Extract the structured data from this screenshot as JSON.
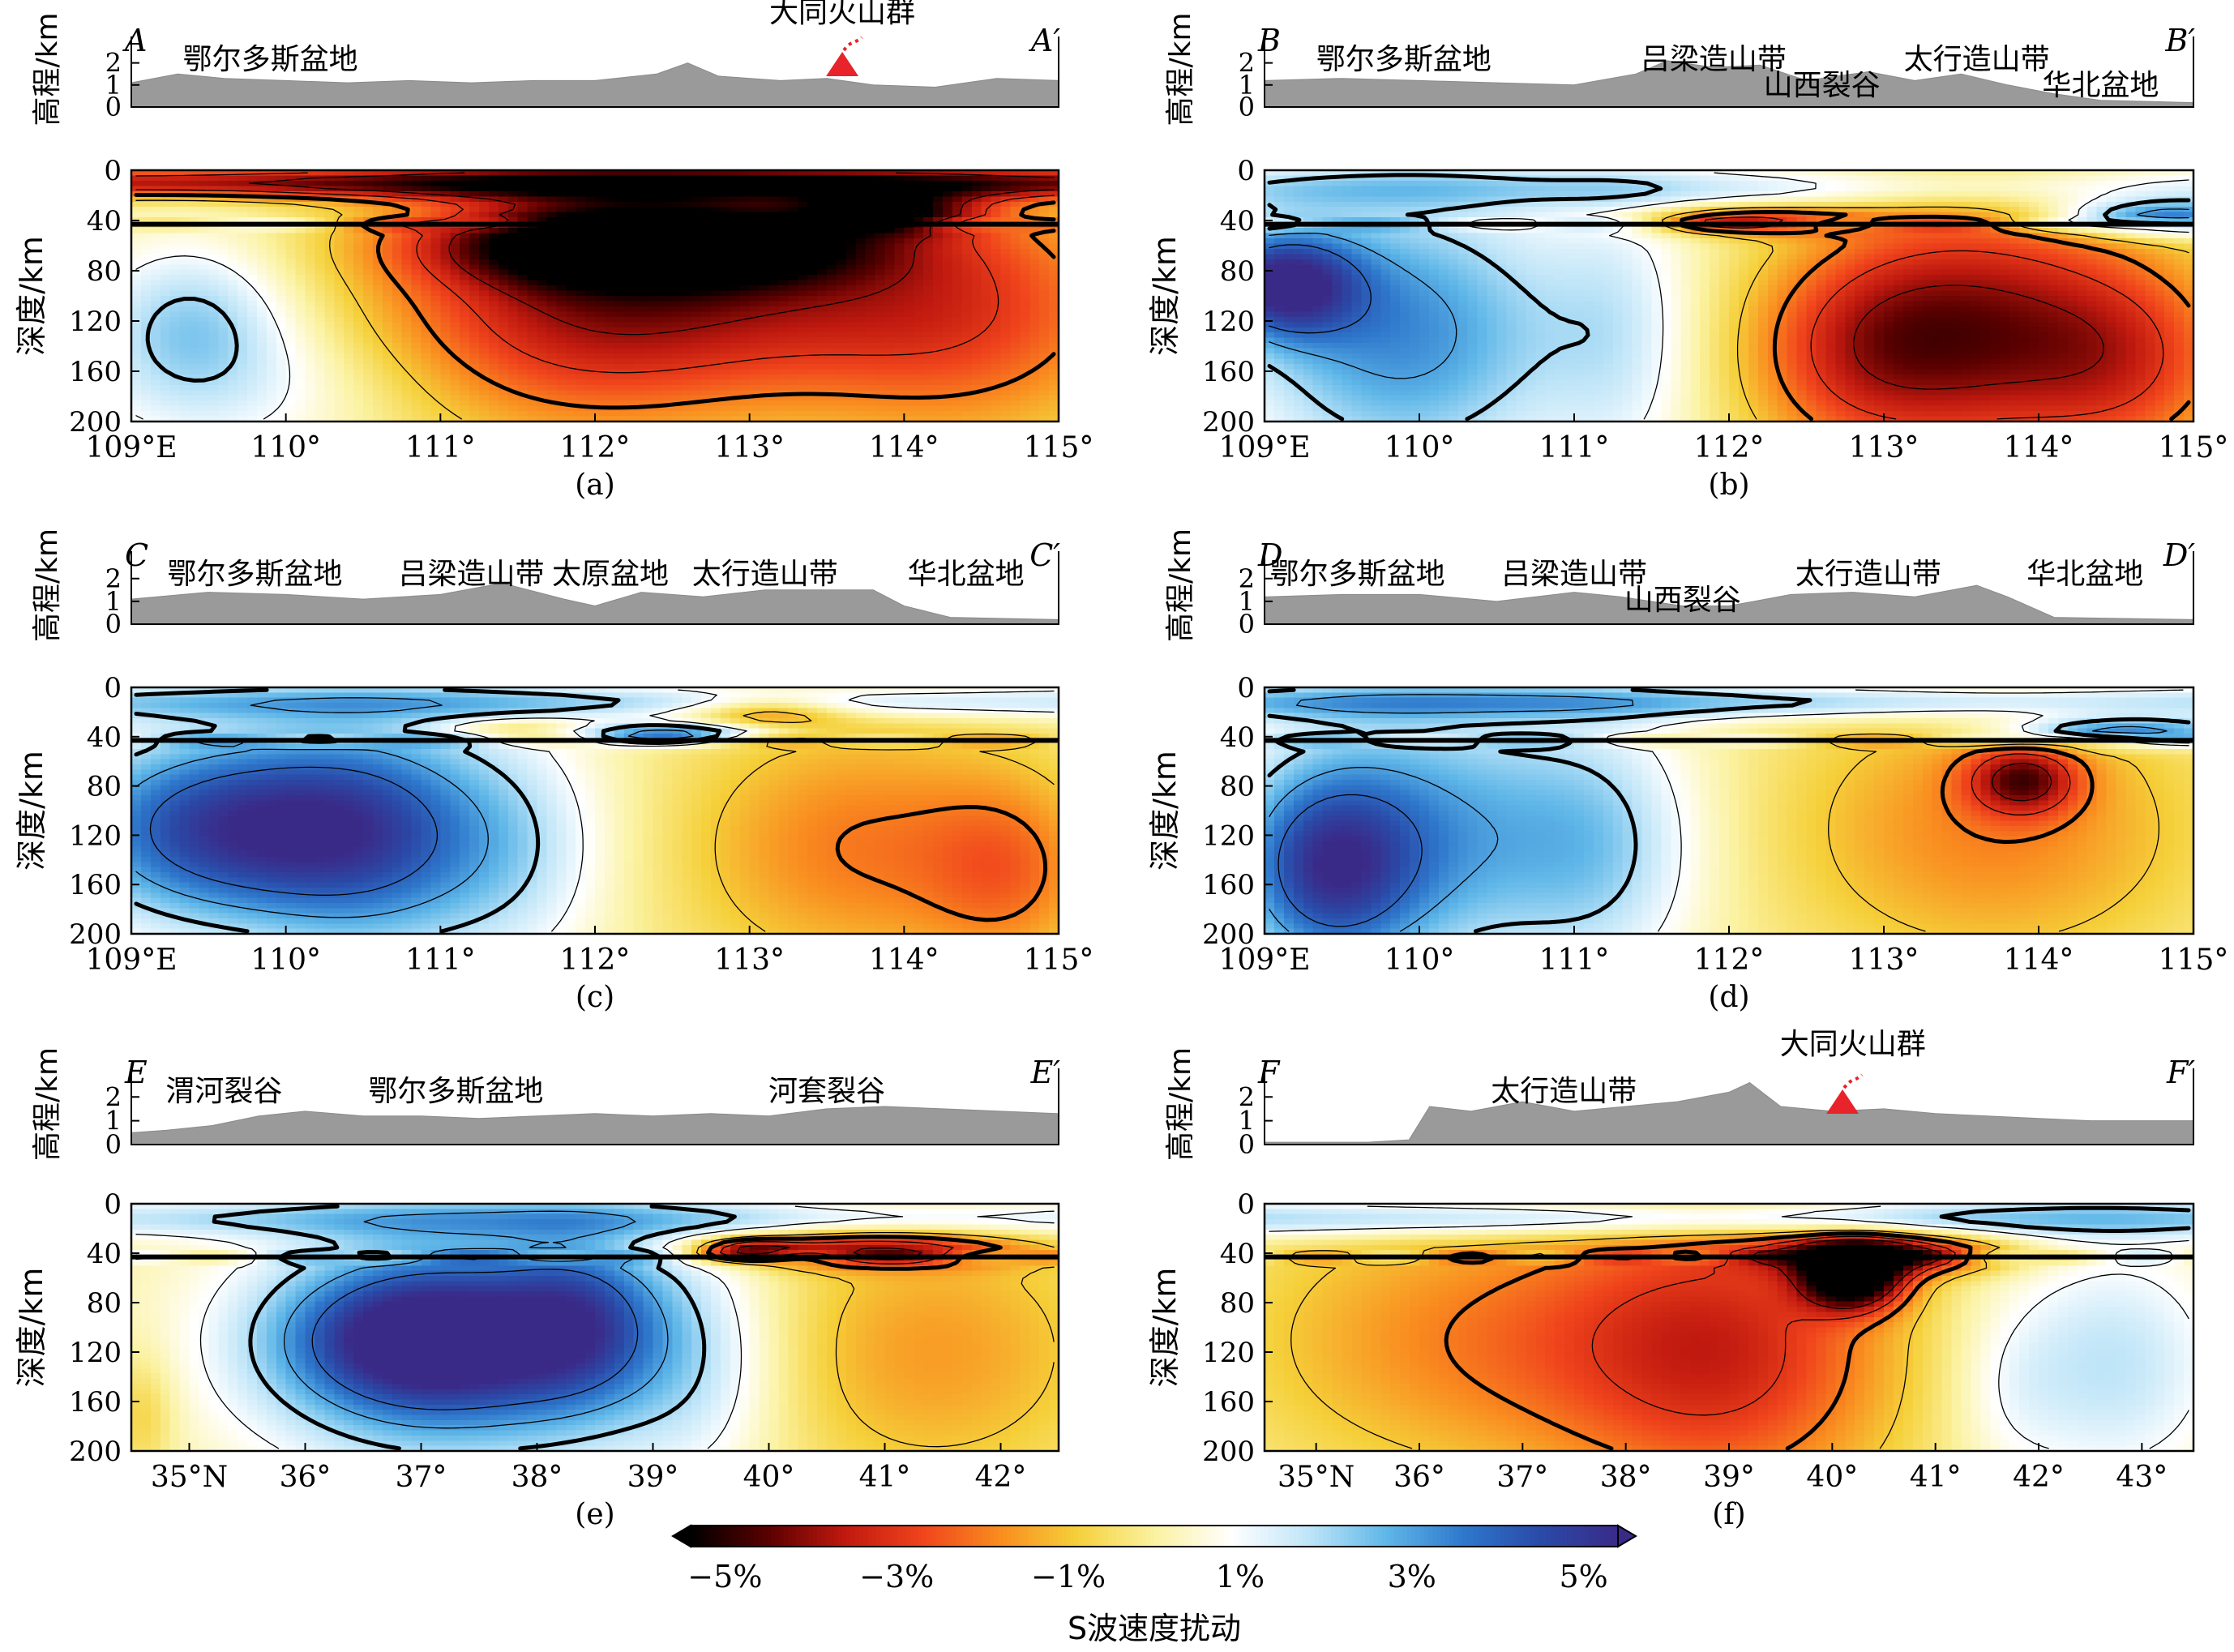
{
  "colorbar": {
    "label": "S波速度扰动",
    "ticks": [
      "−5%",
      "−3%",
      "−1%",
      "1%",
      "3%",
      "5%"
    ],
    "tick_values": [
      -5,
      -3,
      -1,
      1,
      3,
      5
    ],
    "range": [
      -5.4,
      5.4
    ],
    "colors": [
      "#000000",
      "#5a0000",
      "#c0190f",
      "#f0441c",
      "#f98c1f",
      "#f5d03a",
      "#fbf2a0",
      "#ffffff",
      "#bfe5f8",
      "#5fb7e8",
      "#2e78cc",
      "#2a4aa8",
      "#3a2a88"
    ]
  },
  "chart_data": [
    {
      "id": "a",
      "type": "heatmap",
      "caption": "(a)",
      "start_label": "A",
      "end_label": "A′",
      "elev_ylabel": "高程/km",
      "depth_ylabel": "深度/km",
      "elev_ylim": [
        0,
        3.2
      ],
      "elev_ticks": [
        0,
        1,
        2
      ],
      "elev_tick_labels": [
        "0",
        "1",
        "2"
      ],
      "depth_ylim": [
        0,
        200
      ],
      "depth_ticks": [
        0,
        40,
        80,
        120,
        160,
        200
      ],
      "depth_tick_labels": [
        "0",
        "40",
        "80",
        "120",
        "160",
        "200"
      ],
      "xlim": [
        109,
        115
      ],
      "x_ticks": [
        109,
        110,
        111,
        112,
        113,
        114,
        115
      ],
      "x_tick_labels": [
        "109°E",
        "110°",
        "111°",
        "112°",
        "113°",
        "114°",
        "115°"
      ],
      "features": [
        {
          "label": "鄂尔多斯盆地",
          "x": 109.9
        },
        {
          "label": "大同火山群",
          "x": 113.6
        }
      ],
      "volcano_x": 113.6,
      "elevation": {
        "x": [
          109,
          109.3,
          109.6,
          110,
          110.4,
          110.8,
          111.2,
          111.6,
          112,
          112.4,
          112.6,
          112.8,
          113.2,
          113.5,
          113.8,
          114.2,
          114.6,
          115
        ],
        "y": [
          1.1,
          1.5,
          1.3,
          1.2,
          1.1,
          1.2,
          1.1,
          1.2,
          1.2,
          1.5,
          2.0,
          1.4,
          1.2,
          1.3,
          1.0,
          0.9,
          1.3,
          1.2
        ]
      },
      "anomalies": [
        {
          "x": 112.4,
          "z": 58,
          "rx": 0.9,
          "rz": 22,
          "v": -5.5
        },
        {
          "x": 111.9,
          "z": 105,
          "rx": 1.0,
          "rz": 75,
          "v": -3.2
        },
        {
          "x": 113.5,
          "z": 90,
          "rx": 1.3,
          "rz": 60,
          "v": -2.2
        },
        {
          "x": 114.4,
          "z": 135,
          "rx": 0.8,
          "rz": 70,
          "v": -1.6
        },
        {
          "x": 113.9,
          "z": 32,
          "rx": 0.4,
          "rz": 12,
          "v": -3.6
        },
        {
          "x": 109.4,
          "z": 118,
          "rx": 0.45,
          "rz": 45,
          "v": 2.0
        },
        {
          "x": 109.7,
          "z": 175,
          "rx": 0.8,
          "rz": 45,
          "v": 1.1
        },
        {
          "x": 112,
          "z": 10,
          "rx": 6.0,
          "rz": 9,
          "v": -4.2
        }
      ]
    },
    {
      "id": "b",
      "type": "heatmap",
      "caption": "(b)",
      "start_label": "B",
      "end_label": "B′",
      "elev_ylabel": "高程/km",
      "depth_ylabel": "深度/km",
      "elev_ylim": [
        0,
        3.2
      ],
      "elev_ticks": [
        0,
        1,
        2
      ],
      "elev_tick_labels": [
        "0",
        "1",
        "2"
      ],
      "depth_ylim": [
        0,
        200
      ],
      "depth_ticks": [
        0,
        40,
        80,
        120,
        160,
        200
      ],
      "depth_tick_labels": [
        "0",
        "40",
        "80",
        "120",
        "160",
        "200"
      ],
      "xlim": [
        109,
        115
      ],
      "x_ticks": [
        109,
        110,
        111,
        112,
        113,
        114,
        115
      ],
      "x_tick_labels": [
        "109°E",
        "110°",
        "111°",
        "112°",
        "113°",
        "114°",
        "115°"
      ],
      "features": [
        {
          "label": "鄂尔多斯盆地",
          "x": 109.9
        },
        {
          "label": "吕梁造山带",
          "x": 111.9
        },
        {
          "label": "山西裂谷",
          "x": 112.6
        },
        {
          "label": "太行造山带",
          "x": 113.6
        },
        {
          "label": "华北盆地",
          "x": 114.4
        }
      ],
      "volcano_x": null,
      "elevation": {
        "x": [
          109,
          109.5,
          110,
          110.5,
          111,
          111.4,
          111.6,
          111.9,
          112.2,
          112.5,
          112.9,
          113.2,
          113.5,
          113.8,
          114.1,
          114.4,
          115
        ],
        "y": [
          1.2,
          1.3,
          1.2,
          1.1,
          1.0,
          1.5,
          2.1,
          1.8,
          1.9,
          1.2,
          1.6,
          1.2,
          1.5,
          1.0,
          0.6,
          0.3,
          0.2
        ]
      },
      "anomalies": [
        {
          "x": 109.9,
          "z": 130,
          "rx": 0.75,
          "rz": 80,
          "v": 3.3
        },
        {
          "x": 109.1,
          "z": 90,
          "rx": 0.35,
          "rz": 30,
          "v": 4.5
        },
        {
          "x": 111.3,
          "z": 130,
          "rx": 0.35,
          "rz": 80,
          "v": 1.3
        },
        {
          "x": 113.6,
          "z": 125,
          "rx": 0.7,
          "rz": 75,
          "v": -3.5
        },
        {
          "x": 112.8,
          "z": 145,
          "rx": 0.55,
          "rz": 60,
          "v": -2.2
        },
        {
          "x": 114.6,
          "z": 150,
          "rx": 0.55,
          "rz": 60,
          "v": -2.4
        },
        {
          "x": 112.1,
          "z": 40,
          "rx": 0.5,
          "rz": 8,
          "v": -3.0
        },
        {
          "x": 114.8,
          "z": 38,
          "rx": 0.5,
          "rz": 10,
          "v": 4.0
        },
        {
          "x": 112,
          "z": 14,
          "rx": 6.0,
          "rz": 12,
          "v": 1.6
        }
      ]
    },
    {
      "id": "c",
      "type": "heatmap",
      "caption": "(c)",
      "start_label": "C",
      "end_label": "C′",
      "elev_ylabel": "高程/km",
      "depth_ylabel": "深度/km",
      "elev_ylim": [
        0,
        3.2
      ],
      "elev_ticks": [
        0,
        1,
        2
      ],
      "elev_tick_labels": [
        "0",
        "1",
        "2"
      ],
      "depth_ylim": [
        0,
        200
      ],
      "depth_ticks": [
        0,
        40,
        80,
        120,
        160,
        200
      ],
      "depth_tick_labels": [
        "0",
        "40",
        "80",
        "120",
        "160",
        "200"
      ],
      "xlim": [
        109,
        115
      ],
      "x_ticks": [
        109,
        110,
        111,
        112,
        113,
        114,
        115
      ],
      "x_tick_labels": [
        "109°E",
        "110°",
        "111°",
        "112°",
        "113°",
        "114°",
        "115°"
      ],
      "features": [
        {
          "label": "鄂尔多斯盆地",
          "x": 109.8
        },
        {
          "label": "吕梁造山带",
          "x": 111.2
        },
        {
          "label": "太原盆地",
          "x": 112.1
        },
        {
          "label": "太行造山带",
          "x": 113.1
        },
        {
          "label": "华北盆地",
          "x": 114.4
        }
      ],
      "volcano_x": null,
      "elevation": {
        "x": [
          109,
          109.5,
          110,
          110.5,
          111,
          111.4,
          111.8,
          112,
          112.3,
          112.7,
          113.1,
          113.5,
          113.8,
          114,
          114.3,
          115
        ],
        "y": [
          1.1,
          1.4,
          1.3,
          1.1,
          1.3,
          1.8,
          1.1,
          0.8,
          1.4,
          1.2,
          1.5,
          1.5,
          1.5,
          0.8,
          0.3,
          0.2
        ]
      },
      "anomalies": [
        {
          "x": 109.6,
          "z": 115,
          "rx": 0.75,
          "rz": 55,
          "v": 4.8
        },
        {
          "x": 110.6,
          "z": 120,
          "rx": 0.55,
          "rz": 70,
          "v": 3.0
        },
        {
          "x": 111.5,
          "z": 130,
          "rx": 0.45,
          "rz": 70,
          "v": 1.5
        },
        {
          "x": 113.7,
          "z": 130,
          "rx": 0.8,
          "rz": 75,
          "v": -2.0
        },
        {
          "x": 114.7,
          "z": 150,
          "rx": 0.4,
          "rz": 55,
          "v": -1.6
        },
        {
          "x": 113.1,
          "z": 20,
          "rx": 0.35,
          "rz": 9,
          "v": -2.0
        },
        {
          "x": 111.5,
          "z": 33,
          "rx": 0.35,
          "rz": 6,
          "v": -1.6
        },
        {
          "x": 112.5,
          "z": 37,
          "rx": 0.45,
          "rz": 6,
          "v": 3.5
        },
        {
          "x": 112,
          "z": 12,
          "rx": 6.0,
          "rz": 10,
          "v": 2.0
        }
      ]
    },
    {
      "id": "d",
      "type": "heatmap",
      "caption": "(d)",
      "start_label": "D",
      "end_label": "D′",
      "elev_ylabel": "高程/km",
      "depth_ylabel": "深度/km",
      "elev_ylim": [
        0,
        3.2
      ],
      "elev_ticks": [
        0,
        1,
        2
      ],
      "elev_tick_labels": [
        "0",
        "1",
        "2"
      ],
      "depth_ylim": [
        0,
        200
      ],
      "depth_ticks": [
        0,
        40,
        80,
        120,
        160,
        200
      ],
      "depth_tick_labels": [
        "0",
        "40",
        "80",
        "120",
        "160",
        "200"
      ],
      "xlim": [
        109,
        115
      ],
      "x_ticks": [
        109,
        110,
        111,
        112,
        113,
        114,
        115
      ],
      "x_tick_labels": [
        "109°E",
        "110°",
        "111°",
        "112°",
        "113°",
        "114°",
        "115°"
      ],
      "features": [
        {
          "label": "鄂尔多斯盆地",
          "x": 109.6
        },
        {
          "label": "吕梁造山带",
          "x": 111.0
        },
        {
          "label": "山西裂谷",
          "x": 111.7
        },
        {
          "label": "太行造山带",
          "x": 112.9
        },
        {
          "label": "华北盆地",
          "x": 114.3
        }
      ],
      "volcano_x": null,
      "elevation": {
        "x": [
          109,
          109.5,
          110,
          110.5,
          111,
          111.3,
          111.7,
          112,
          112.4,
          112.8,
          113.2,
          113.6,
          113.8,
          114.1,
          115
        ],
        "y": [
          1.2,
          1.3,
          1.3,
          1.0,
          1.4,
          1.2,
          0.8,
          0.8,
          1.3,
          1.4,
          1.2,
          1.7,
          1.2,
          0.3,
          0.2
        ]
      },
      "anomalies": [
        {
          "x": 110,
          "z": 120,
          "rx": 0.8,
          "rz": 80,
          "v": 3.0
        },
        {
          "x": 109.4,
          "z": 150,
          "rx": 0.4,
          "rz": 55,
          "v": 3.4
        },
        {
          "x": 111.2,
          "z": 130,
          "rx": 0.45,
          "rz": 75,
          "v": 1.6
        },
        {
          "x": 113.7,
          "z": 115,
          "rx": 0.95,
          "rz": 80,
          "v": -1.9
        },
        {
          "x": 113.9,
          "z": 75,
          "rx": 0.25,
          "rz": 20,
          "v": -3.2
        },
        {
          "x": 112,
          "z": 12,
          "rx": 6.0,
          "rz": 10,
          "v": 2.4
        },
        {
          "x": 114.5,
          "z": 36,
          "rx": 0.6,
          "rz": 8,
          "v": 4.0
        }
      ]
    },
    {
      "id": "e",
      "type": "heatmap",
      "caption": "(e)",
      "start_label": "E",
      "end_label": "E′",
      "elev_ylabel": "高程/km",
      "depth_ylabel": "深度/km",
      "elev_ylim": [
        0,
        3.2
      ],
      "elev_ticks": [
        0,
        1,
        2
      ],
      "elev_tick_labels": [
        "0",
        "1",
        "2"
      ],
      "depth_ylim": [
        0,
        200
      ],
      "depth_ticks": [
        0,
        40,
        80,
        120,
        160,
        200
      ],
      "depth_tick_labels": [
        "0",
        "40",
        "80",
        "120",
        "160",
        "200"
      ],
      "xlim": [
        34.5,
        42.5
      ],
      "x_ticks": [
        35,
        36,
        37,
        38,
        39,
        40,
        41,
        42
      ],
      "x_tick_labels": [
        "35°N",
        "36°",
        "37°",
        "38°",
        "39°",
        "40°",
        "41°",
        "42°"
      ],
      "features": [
        {
          "label": "渭河裂谷",
          "x": 35.3
        },
        {
          "label": "鄂尔多斯盆地",
          "x": 37.3
        },
        {
          "label": "河套裂谷",
          "x": 40.5
        }
      ],
      "volcano_x": null,
      "elevation": {
        "x": [
          34.5,
          34.8,
          35.2,
          35.6,
          36,
          36.5,
          37,
          37.5,
          38,
          38.5,
          39,
          39.5,
          40,
          40.5,
          41,
          41.5,
          42,
          42.5
        ],
        "y": [
          0.5,
          0.6,
          0.8,
          1.2,
          1.4,
          1.2,
          1.2,
          1.1,
          1.2,
          1.3,
          1.2,
          1.3,
          1.2,
          1.5,
          1.6,
          1.5,
          1.4,
          1.3
        ]
      },
      "anomalies": [
        {
          "x": 37.3,
          "z": 115,
          "rx": 1.3,
          "rz": 75,
          "v": 3.3
        },
        {
          "x": 37.0,
          "z": 110,
          "rx": 0.8,
          "rz": 40,
          "v": 3.8
        },
        {
          "x": 38.4,
          "z": 95,
          "rx": 0.5,
          "rz": 50,
          "v": 2.6
        },
        {
          "x": 39.4,
          "z": 130,
          "rx": 0.5,
          "rz": 70,
          "v": 1.2
        },
        {
          "x": 41.4,
          "z": 120,
          "rx": 1.1,
          "rz": 80,
          "v": -1.6
        },
        {
          "x": 34.6,
          "z": 170,
          "rx": 0.2,
          "rz": 35,
          "v": -1.0
        },
        {
          "x": 40.8,
          "z": 37,
          "rx": 0.9,
          "rz": 10,
          "v": -3.4
        },
        {
          "x": 39.8,
          "z": 36,
          "rx": 0.3,
          "rz": 6,
          "v": -3.0
        },
        {
          "x": 38.5,
          "z": 12,
          "rx": 8.0,
          "rz": 11,
          "v": 1.8
        }
      ]
    },
    {
      "id": "f",
      "type": "heatmap",
      "caption": "(f)",
      "start_label": "F",
      "end_label": "F′",
      "elev_ylabel": "高程/km",
      "depth_ylabel": "深度/km",
      "elev_ylim": [
        0,
        3.2
      ],
      "elev_ticks": [
        0,
        1,
        2
      ],
      "elev_tick_labels": [
        "0",
        "1",
        "2"
      ],
      "depth_ylim": [
        0,
        200
      ],
      "depth_ticks": [
        0,
        40,
        80,
        120,
        160,
        200
      ],
      "depth_tick_labels": [
        "0",
        "40",
        "80",
        "120",
        "160",
        "200"
      ],
      "xlim": [
        34.5,
        43.5
      ],
      "x_ticks": [
        35,
        36,
        37,
        38,
        39,
        40,
        41,
        42,
        43
      ],
      "x_tick_labels": [
        "35°N",
        "36°",
        "37°",
        "38°",
        "39°",
        "40°",
        "41°",
        "42°",
        "43°"
      ],
      "features": [
        {
          "label": "太行造山带",
          "x": 37.4
        },
        {
          "label": "大同火山群",
          "x": 40.2
        }
      ],
      "volcano_x": 40.1,
      "elevation": {
        "x": [
          34.5,
          35,
          35.5,
          35.9,
          36.1,
          36.5,
          37,
          37.5,
          38,
          38.5,
          39,
          39.2,
          39.5,
          40,
          40.5,
          41,
          41.5,
          42,
          42.5,
          43,
          43.5
        ],
        "y": [
          0.1,
          0.1,
          0.1,
          0.2,
          1.6,
          1.4,
          1.8,
          1.4,
          1.6,
          1.8,
          2.2,
          2.6,
          1.6,
          1.4,
          1.5,
          1.3,
          1.2,
          1.1,
          1.0,
          1.0,
          1.0
        ]
      },
      "anomalies": [
        {
          "x": 39.0,
          "z": 120,
          "rx": 1.2,
          "rz": 90,
          "v": -3.0
        },
        {
          "x": 40.2,
          "z": 60,
          "rx": 0.35,
          "rz": 18,
          "v": -5.5
        },
        {
          "x": 40.5,
          "z": 40,
          "rx": 0.8,
          "rz": 12,
          "v": -4.0
        },
        {
          "x": 36.5,
          "z": 110,
          "rx": 1.6,
          "rz": 80,
          "v": -1.8
        },
        {
          "x": 42.7,
          "z": 130,
          "rx": 0.8,
          "rz": 70,
          "v": 1.8
        },
        {
          "x": 41.7,
          "z": 150,
          "rx": 0.4,
          "rz": 50,
          "v": 0.6
        },
        {
          "x": 38.5,
          "z": 12,
          "rx": 8.0,
          "rz": 11,
          "v": 2.6
        }
      ]
    }
  ]
}
